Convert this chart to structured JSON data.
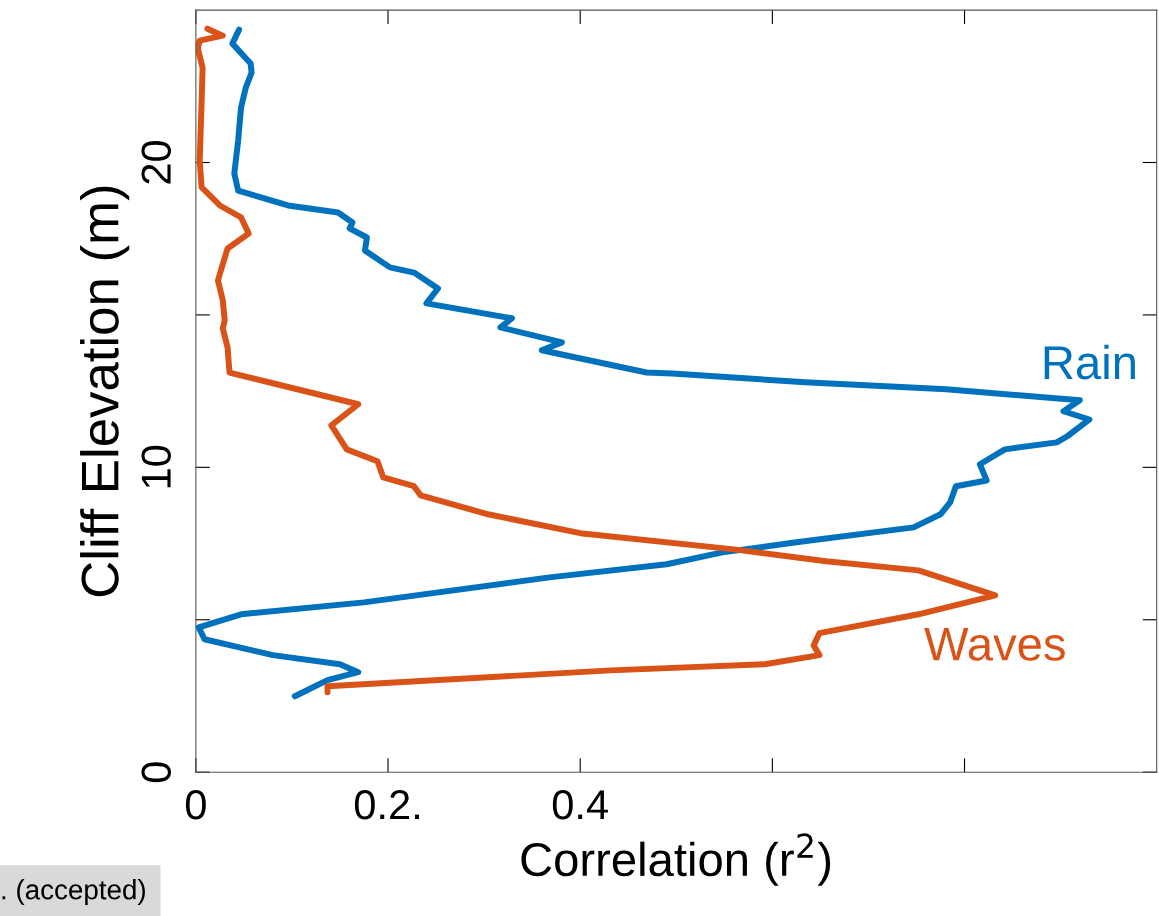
{
  "chart_data": {
    "type": "line",
    "xlabel": "Correlation (r$^{2}$)",
    "ylabel": "Cliff Elevation (m)",
    "xlim": [
      0,
      1.0
    ],
    "xticks": [
      0,
      {
        "value": 0.2,
        "label": "0.2."
      },
      0.4,
      {
        "value": 0.6,
        "label": null
      },
      {
        "value": 0.8,
        "label": null
      }
    ],
    "ylim": [
      0,
      25
    ],
    "yticks": [
      0,
      {
        "value": 5,
        "label": null
      },
      10,
      {
        "value": 15,
        "label": null
      },
      20
    ],
    "grid": false,
    "legend": false,
    "line_style": "solid",
    "marker": "none",
    "annotations": [
      ". (accepted)"
    ],
    "series": [
      {
        "name": "Rain",
        "color": "#0072bd",
        "x": [
          0.045,
          0.038,
          0.057,
          0.058,
          0.052,
          0.047,
          0.044,
          0.04,
          0.044,
          0.096,
          0.148,
          0.163,
          0.16,
          0.178,
          0.176,
          0.202,
          0.227,
          0.252,
          0.24,
          0.329,
          0.317,
          0.381,
          0.36,
          0.469,
          0.496,
          0.634,
          0.781,
          0.92,
          0.903,
          0.93,
          0.907,
          0.896,
          0.842,
          0.816,
          0.823,
          0.791,
          0.785,
          0.775,
          0.747,
          0.625,
          0.548,
          0.49,
          0.368,
          0.175,
          0.047,
          0.003,
          0.009,
          0.08,
          0.15,
          0.169,
          0.137,
          0.103
        ],
        "values": [
          24.36,
          23.9,
          23.25,
          22.95,
          22.46,
          21.8,
          20.72,
          19.64,
          19.08,
          18.59,
          18.36,
          18.03,
          17.84,
          17.54,
          17.11,
          16.56,
          16.39,
          15.87,
          15.38,
          14.89,
          14.59,
          14.1,
          13.84,
          13.11,
          13.08,
          12.79,
          12.56,
          12.2,
          11.84,
          11.57,
          11.02,
          10.82,
          10.59,
          10.1,
          9.57,
          9.38,
          8.85,
          8.46,
          8.03,
          7.54,
          7.21,
          6.82,
          6.39,
          5.57,
          5.18,
          4.75,
          4.36,
          3.84,
          3.54,
          3.28,
          3.02,
          2.49
        ]
      },
      {
        "name": "Waves",
        "color": "#d95319",
        "x": [
          0.012,
          0.028,
          0.004,
          0.002,
          0.007,
          0.006,
          0.004,
          0.006,
          0.025,
          0.047,
          0.055,
          0.033,
          0.027,
          0.023,
          0.028,
          0.03,
          0.028,
          0.033,
          0.035,
          0.169,
          0.141,
          0.157,
          0.189,
          0.195,
          0.227,
          0.234,
          0.304,
          0.4,
          0.56,
          0.656,
          0.752,
          0.832,
          0.752,
          0.649,
          0.643,
          0.649,
          0.592,
          0.432,
          0.137,
          0.137
        ],
        "values": [
          24.39,
          24.16,
          24.0,
          23.74,
          23.11,
          22.03,
          20.07,
          19.18,
          18.59,
          18.2,
          17.67,
          17.18,
          16.56,
          16.13,
          15.48,
          14.82,
          14.56,
          13.93,
          13.11,
          12.07,
          11.38,
          10.59,
          10.2,
          9.67,
          9.38,
          9.08,
          8.46,
          7.84,
          7.31,
          6.92,
          6.62,
          5.8,
          5.18,
          4.56,
          4.16,
          3.84,
          3.54,
          3.34,
          2.82,
          2.62
        ]
      }
    ]
  }
}
